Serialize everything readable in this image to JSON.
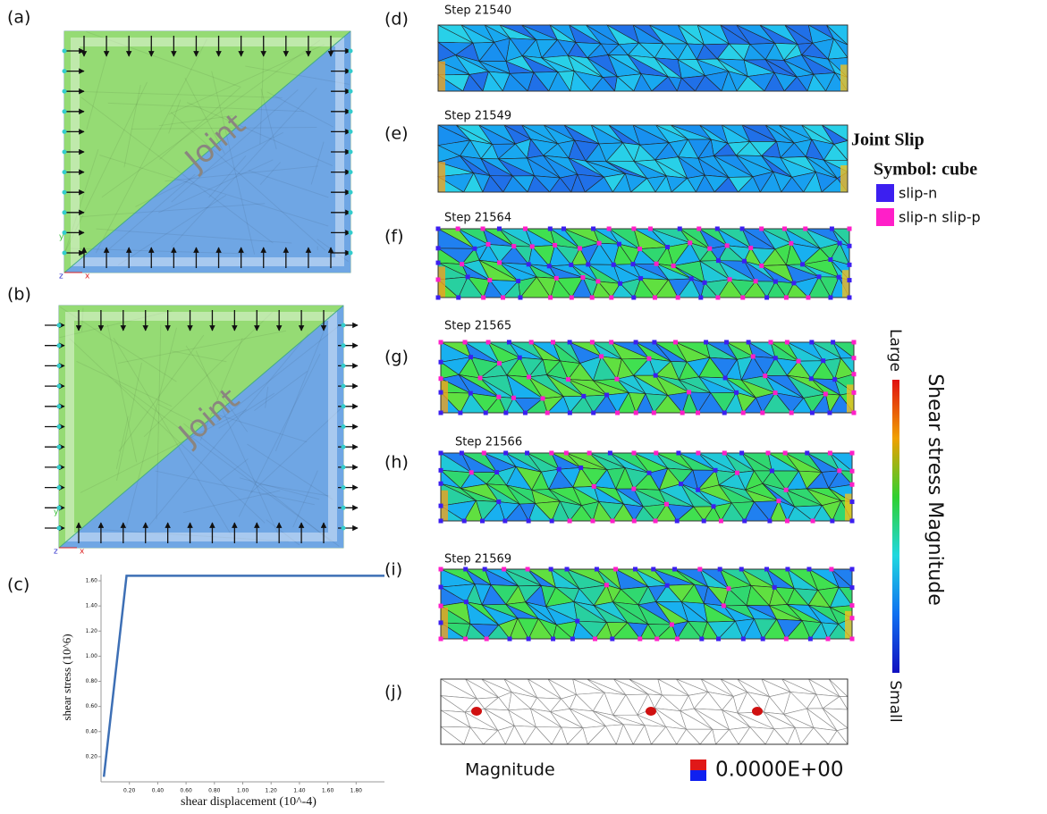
{
  "panel_labels": [
    "(a)",
    "(b)",
    "(c)",
    "(d)",
    "(e)",
    "(f)",
    "(g)",
    "(h)",
    "(i)",
    "(j)"
  ],
  "joint_label": "Joint",
  "axis_letters": {
    "x": "x",
    "y": "y",
    "z": "z"
  },
  "steps": [
    "Step 21540",
    "Step 21549",
    "Step 21564",
    "Step 21565",
    "Step 21566",
    "Step 21569"
  ],
  "legend": {
    "title": "Joint Slip",
    "symbol": "Symbol: cube",
    "items": [
      {
        "label": "slip-n",
        "color": "#3c1ff0"
      },
      {
        "label": "slip-n slip-p",
        "color": "#ff1fc8"
      }
    ]
  },
  "colorbar": {
    "title": "Shear stress Magnitude",
    "max_label": "Large",
    "min_label": "Small"
  },
  "magnitude": {
    "label": "Magnitude",
    "value": "0.0000E+00"
  },
  "chart": {
    "type": "line",
    "xlabel": "shear displacement (10^-4)",
    "ylabel": "shear stress (10^6)",
    "x": [
      0.02,
      0.18,
      2.0
    ],
    "values": [
      0.04,
      1.64,
      1.64
    ],
    "color": "#3d6fb5",
    "xlim": [
      0,
      2.0
    ],
    "ylim": [
      0,
      1.65
    ],
    "xticks": [
      {
        "value": 0.2,
        "label": "0.20"
      },
      {
        "value": 0.4,
        "label": "0.40"
      },
      {
        "value": 0.6,
        "label": "0.60"
      },
      {
        "value": 0.8,
        "label": "0.80"
      },
      {
        "value": 1.0,
        "label": "1.00"
      },
      {
        "value": 1.2,
        "label": "1.20"
      },
      {
        "value": 1.4,
        "label": "1.40"
      },
      {
        "value": 1.6,
        "label": "1.60"
      },
      {
        "value": 1.8,
        "label": "1.80"
      }
    ],
    "yticks": [
      {
        "value": 0.2,
        "label": "0.20"
      },
      {
        "value": 0.4,
        "label": "0.40"
      },
      {
        "value": 0.6,
        "label": "0.60"
      },
      {
        "value": 0.8,
        "label": "0.80"
      },
      {
        "value": 1.0,
        "label": "1.00"
      },
      {
        "value": 1.2,
        "label": "1.20"
      },
      {
        "value": 1.4,
        "label": "1.40"
      },
      {
        "value": 1.6,
        "label": "1.60"
      }
    ]
  }
}
